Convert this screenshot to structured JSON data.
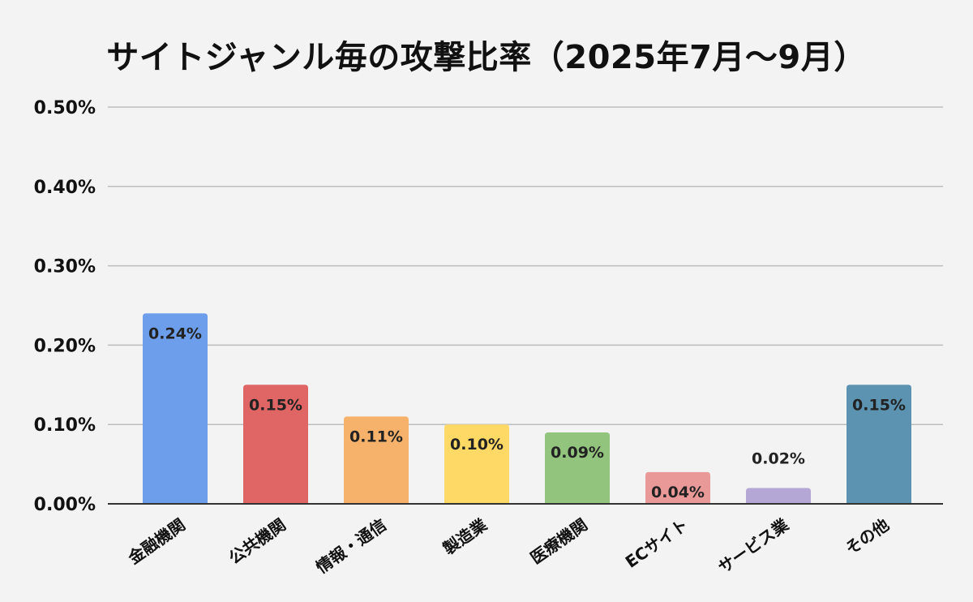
{
  "chart_data": {
    "type": "bar",
    "title": "サイトジャンル毎の攻撃比率（2025年7月～9月）",
    "xlabel": "",
    "ylabel": "",
    "ylim": [
      0,
      0.5
    ],
    "y_ticks": [
      0.0,
      0.1,
      0.2,
      0.3,
      0.4,
      0.5
    ],
    "y_tick_labels": [
      "0.00%",
      "0.10%",
      "0.20%",
      "0.30%",
      "0.40%",
      "0.50%"
    ],
    "grid": true,
    "legend": "none",
    "categories": [
      "金融機関",
      "公共機関",
      "情報・通信",
      "製造業",
      "医療機関",
      "ECサイト",
      "サービス業",
      "その他"
    ],
    "values": [
      0.24,
      0.15,
      0.11,
      0.1,
      0.09,
      0.04,
      0.02,
      0.15
    ],
    "value_labels": [
      "0.24%",
      "0.15%",
      "0.11%",
      "0.10%",
      "0.09%",
      "0.04%",
      "0.02%",
      "0.15%"
    ],
    "colors": [
      "#6d9eeb",
      "#e06666",
      "#f6b26b",
      "#ffd966",
      "#93c47d",
      "#ea9999",
      "#b4a7d6",
      "#5b93b0"
    ]
  }
}
